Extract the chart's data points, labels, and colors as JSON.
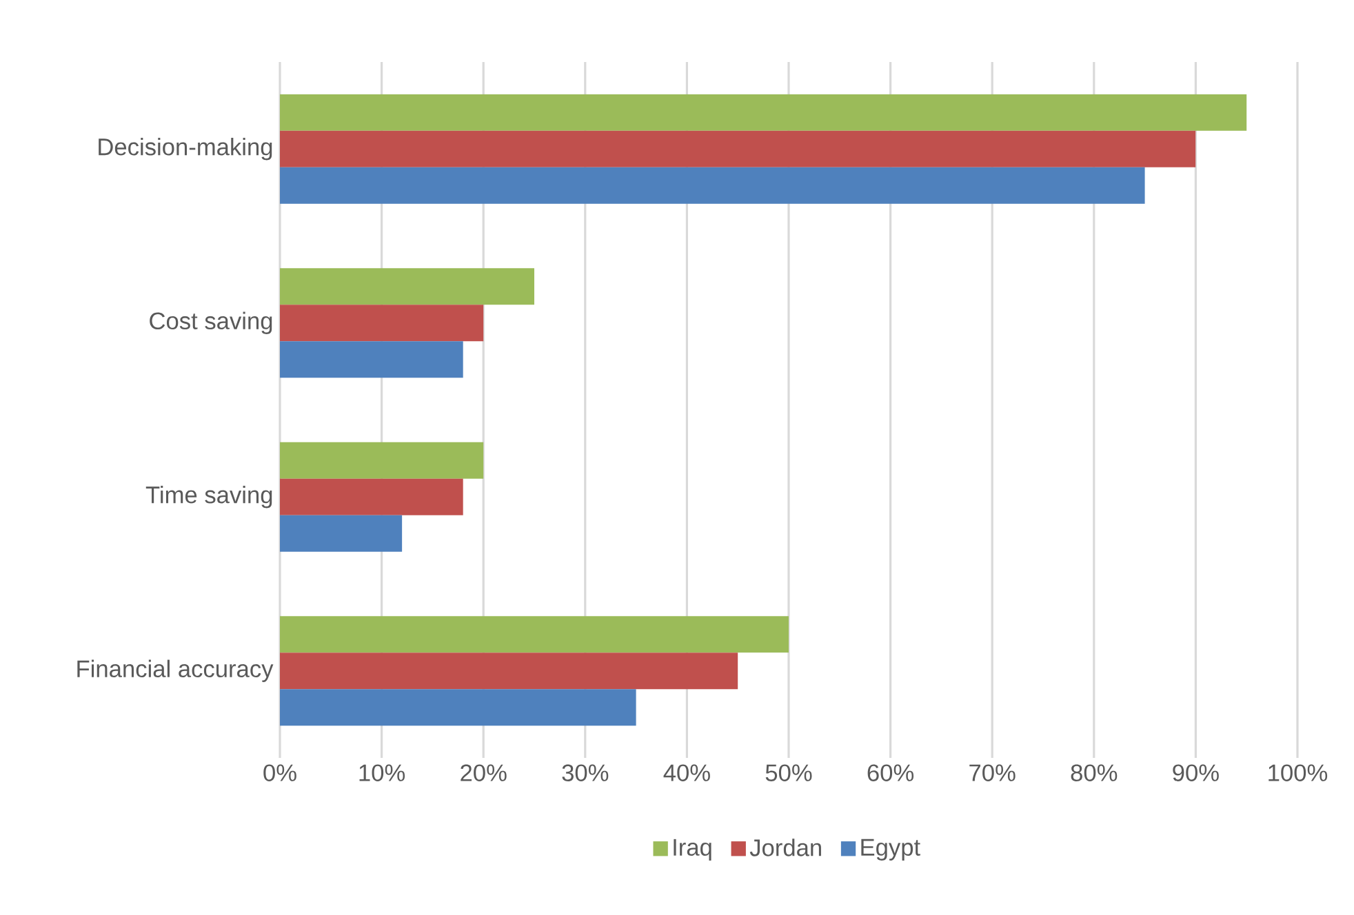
{
  "chart_data": {
    "type": "bar",
    "orientation": "horizontal",
    "categories": [
      "Decision-making",
      "Cost saving",
      "Time saving",
      "Financial accuracy"
    ],
    "series": [
      {
        "name": "Iraq",
        "color": "#9bbb59",
        "values": [
          95,
          25,
          20,
          50
        ]
      },
      {
        "name": "Jordan",
        "color": "#c0504d",
        "values": [
          90,
          20,
          18,
          45
        ]
      },
      {
        "name": "Egypt",
        "color": "#4f81bd",
        "values": [
          85,
          18,
          12,
          35
        ]
      }
    ],
    "xlim": [
      0,
      100
    ],
    "xticks": [
      {
        "value": 0,
        "label": "0%"
      },
      {
        "value": 10,
        "label": "10%"
      },
      {
        "value": 20,
        "label": "20%"
      },
      {
        "value": 30,
        "label": "30%"
      },
      {
        "value": 40,
        "label": "40%"
      },
      {
        "value": 50,
        "label": "50%"
      },
      {
        "value": 60,
        "label": "60%"
      },
      {
        "value": 70,
        "label": "70%"
      },
      {
        "value": 80,
        "label": "80%"
      },
      {
        "value": 90,
        "label": "90%"
      },
      {
        "value": 100,
        "label": "100%"
      }
    ],
    "grid": "x",
    "legend": "bottom"
  }
}
